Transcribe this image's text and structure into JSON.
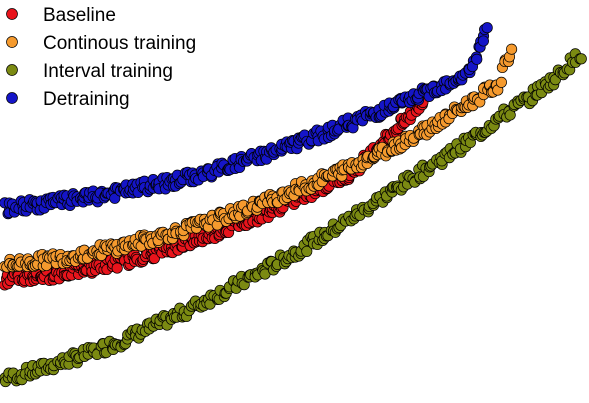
{
  "chart_data": {
    "type": "scatter",
    "title": "",
    "xlabel": "",
    "ylabel": "",
    "xlim": [
      0,
      100
    ],
    "ylim": [
      0,
      100
    ],
    "grid": false,
    "legend_position": "top-left",
    "series": [
      {
        "name": "Baseline",
        "color": "#e8141c",
        "x": [
          0,
          5,
          10,
          15,
          20,
          25,
          30,
          35,
          40,
          45,
          50,
          55,
          60,
          62,
          64,
          66,
          68,
          70,
          72
        ],
        "y": [
          29,
          30,
          31,
          32.5,
          34,
          36,
          38.5,
          41,
          44,
          47,
          50.5,
          54,
          58,
          61,
          64,
          67,
          70,
          73,
          77
        ]
      },
      {
        "name": "Continous training",
        "color": "#f59a2e",
        "x": [
          0,
          5,
          10,
          15,
          20,
          25,
          30,
          35,
          40,
          45,
          50,
          55,
          60,
          65,
          70,
          75,
          80,
          85,
          87
        ],
        "y": [
          33,
          34,
          35,
          36.5,
          38,
          40,
          42,
          44.5,
          47,
          50,
          53,
          56,
          59.5,
          63,
          67,
          71,
          76,
          81,
          90
        ]
      },
      {
        "name": "Interval training",
        "color": "#7b8a12",
        "x": [
          0,
          5,
          10,
          15,
          20,
          25,
          30,
          35,
          40,
          45,
          50,
          55,
          60,
          65,
          70,
          75,
          80,
          85,
          90,
          95,
          99
        ],
        "y": [
          3,
          5,
          7.5,
          10,
          13,
          16.5,
          20,
          24,
          28,
          32,
          36.5,
          41,
          46,
          51,
          56,
          61,
          66,
          72,
          77,
          83,
          89
        ]
      },
      {
        "name": "Detraining",
        "color": "#1515c8",
        "x": [
          0,
          5,
          10,
          15,
          20,
          25,
          30,
          35,
          40,
          45,
          50,
          55,
          60,
          65,
          70,
          75,
          80,
          83
        ],
        "y": [
          48,
          49,
          50,
          51,
          52.5,
          54,
          55.5,
          57.5,
          60,
          62.5,
          65,
          68,
          71,
          74,
          77,
          80.5,
          84,
          96
        ]
      }
    ]
  }
}
